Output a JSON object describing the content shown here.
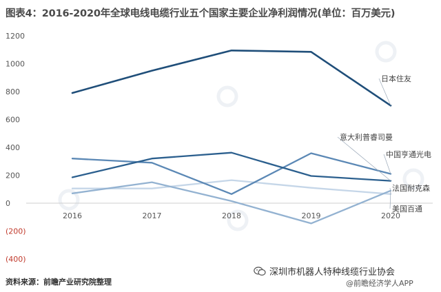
{
  "title": "图表4：2016-2020年全球电线电缆行业五个国家主要企业净利润情况(单位：百万美元)",
  "source": "资料来源：前瞻产业研究院整理",
  "wechat_account": "深圳市机器人特种线缆行业协会",
  "watermark_app": "@前瞻经济学人APP",
  "chart_data": {
    "type": "line",
    "title": "图表4：2016-2020年全球电线电缆行业五个国家主要企业净利润情况(单位：百万美元)",
    "xlabel": "",
    "ylabel": "",
    "x": [
      "2016",
      "2017",
      "2018",
      "2019",
      "2020"
    ],
    "ylim": [
      -400,
      1200
    ],
    "yticks": [
      1200,
      1000,
      800,
      600,
      400,
      200,
      0,
      -200,
      -400
    ],
    "ytick_labels": [
      "1200",
      "1000",
      "800",
      "600",
      "400",
      "200",
      "0",
      "(200)",
      "(400)"
    ],
    "grid": false,
    "legend": "direct labels at line ends (right)",
    "series": [
      {
        "name": "日本住友",
        "values": [
          790,
          950,
          1095,
          1085,
          700
        ],
        "color": "#1f4e79",
        "width": 2.6
      },
      {
        "name": "意大利普睿司曼",
        "values": [
          185,
          320,
          362,
          195,
          160
        ],
        "color": "#2b5f8e",
        "width": 2.3
      },
      {
        "name": "中国亨通光电",
        "values": [
          320,
          290,
          65,
          358,
          210
        ],
        "color": "#5b88b5",
        "width": 2.3
      },
      {
        "name": "法国耐克森",
        "values": [
          105,
          105,
          165,
          110,
          65
        ],
        "color": "#c5d6e8",
        "width": 2.3
      },
      {
        "name": "美国百通",
        "values": [
          70,
          150,
          15,
          -145,
          90
        ],
        "color": "#93b2d1",
        "width": 2.3
      }
    ]
  }
}
